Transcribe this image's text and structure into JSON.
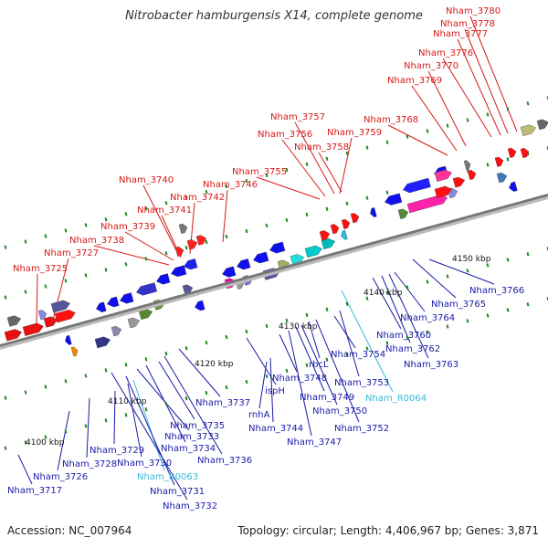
{
  "title": "Nitrobacter hamburgensis X14, complete genome",
  "footer": {
    "accession": "Accession: NC_007964",
    "topology": "Topology: circular; Length: 4,406,967 bp; Genes: 3,871"
  },
  "colors": {
    "top_label": "#d81818",
    "bottom_label": "#1a1aa8",
    "rna_label": "#33bbdd",
    "backbone": "#999999",
    "tick": "#228822"
  },
  "scale": {
    "ticks": [
      "4100 kbp",
      "4110 kbp",
      "4120 kbp",
      "4130 kbp",
      "4140 kbp",
      "4150 kbp"
    ]
  },
  "top_labels": [
    "Nham_3725",
    "Nham_3727",
    "Nham_3738",
    "Nham_3739",
    "Nham_3741",
    "Nham_3740",
    "Nham_3742",
    "Nham_3746",
    "Nham_3755",
    "Nham_3756",
    "Nham_3757",
    "Nham_3758",
    "Nham_3759",
    "Nham_3768",
    "Nham_3769",
    "Nham_3770",
    "Nham_3776",
    "Nham_3777",
    "Nham_3778",
    "Nham_3780"
  ],
  "bottom_labels": [
    "Nham_3717",
    "Nham_3726",
    "Nham_3728",
    "Nham_3729",
    "Nham_3730",
    "Nham_R0063",
    "Nham_3731",
    "Nham_3732",
    "Nham_3733",
    "Nham_3734",
    "Nham_3735",
    "Nham_3736",
    "Nham_3737",
    "rnhA",
    "Nham_3744",
    "ispH",
    "Nham_3748",
    "Nham_3747",
    "Nham_3749",
    "Nham_3750",
    "rbcL",
    "Nham_3752",
    "Nham_3754",
    "Nham_3753",
    "Nham_R0064",
    "Nham_3760",
    "Nham_3762",
    "Nham_3763",
    "Nham_3764",
    "Nham_3765",
    "Nham_3766"
  ]
}
